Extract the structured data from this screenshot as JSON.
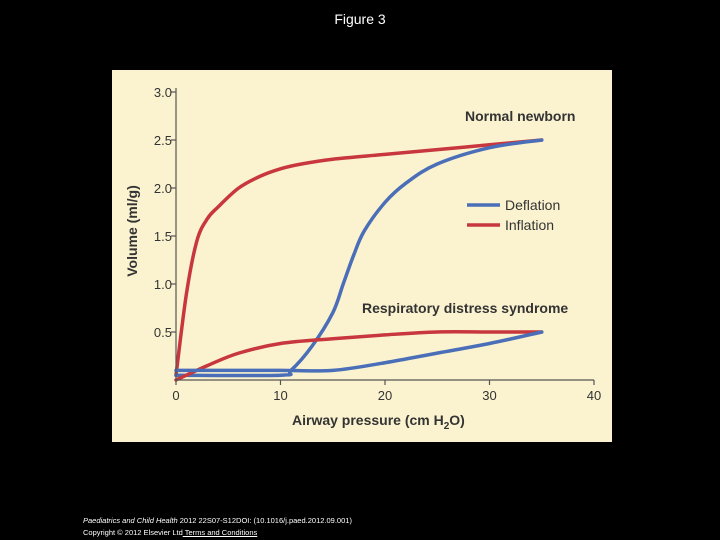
{
  "slide": {
    "title": "Figure 3"
  },
  "footer": {
    "journal": "Paediatrics and Child Health",
    "citation": " 2012 22S07-S12DOI: (10.1016/j.paed.2012.09.001)",
    "copyright": "Copyright © 2012 Elsevier Ltd",
    "terms_link": " Terms and Conditions"
  },
  "colors": {
    "inflation": "#c8373d",
    "deflation": "#4a6fb8",
    "panel_background": "#fbf3cf",
    "axis": "#555555"
  },
  "chart_data": {
    "type": "line",
    "xlabel": "Airway pressure (cm H2O)",
    "ylabel": "Volume (ml/g)",
    "xlim": [
      0,
      40
    ],
    "ylim": [
      0,
      3.0
    ],
    "xticks": [
      "0",
      "10",
      "20",
      "30",
      "40"
    ],
    "yticks": [
      "0.5",
      "1.0",
      "1.5",
      "2.0",
      "2.5",
      "3.0"
    ],
    "grid": false,
    "legend_position": "right",
    "legend": [
      "Deflation",
      "Inflation"
    ],
    "annotations": [
      "Normal newborn",
      "Respiratory distress syndrome"
    ],
    "series": [
      {
        "name": "Inflation",
        "group": "Normal newborn",
        "color": "#c8373d",
        "x": [
          0,
          1,
          2,
          3,
          4,
          6,
          8,
          10,
          12,
          15,
          20,
          25,
          30,
          35
        ],
        "y": [
          0.05,
          0.9,
          1.45,
          1.68,
          1.8,
          2.0,
          2.12,
          2.2,
          2.25,
          2.3,
          2.35,
          2.4,
          2.45,
          2.5
        ]
      },
      {
        "name": "Deflation",
        "group": "Normal newborn",
        "color": "#4a6fb8",
        "x": [
          0,
          10,
          11,
          13,
          15,
          16,
          17,
          18,
          20,
          22,
          25,
          30,
          35
        ],
        "y": [
          0.05,
          0.05,
          0.1,
          0.35,
          0.7,
          1.0,
          1.3,
          1.55,
          1.85,
          2.05,
          2.25,
          2.42,
          2.5
        ]
      },
      {
        "name": "Inflation",
        "group": "Respiratory distress syndrome",
        "color": "#c8373d",
        "x": [
          0,
          3,
          6,
          10,
          15,
          20,
          25,
          30,
          35
        ],
        "y": [
          0.0,
          0.15,
          0.28,
          0.38,
          0.43,
          0.47,
          0.5,
          0.5,
          0.5
        ]
      },
      {
        "name": "Deflation",
        "group": "Respiratory distress syndrome",
        "color": "#4a6fb8",
        "x": [
          0,
          3,
          5,
          10,
          15,
          20,
          25,
          30,
          35
        ],
        "y": [
          0.1,
          0.1,
          0.1,
          0.1,
          0.1,
          0.18,
          0.28,
          0.38,
          0.5
        ]
      }
    ]
  }
}
